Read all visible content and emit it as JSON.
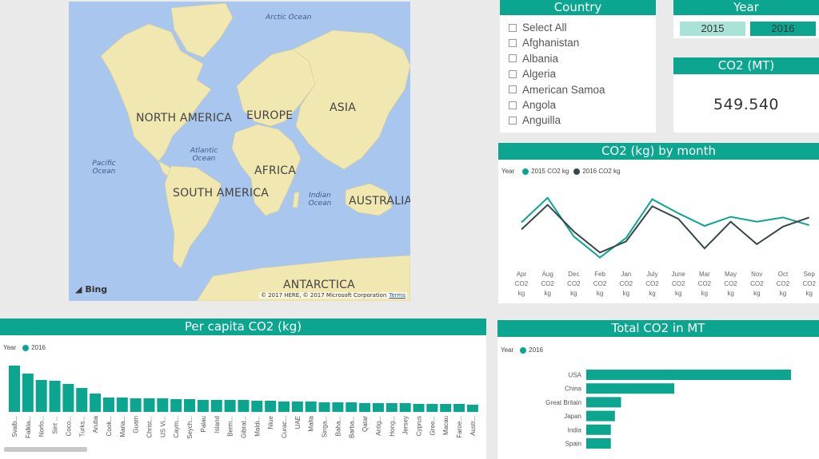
{
  "colors": {
    "teal": "#0ba590",
    "light_teal": "#a9e3d8",
    "dark": "#374649",
    "land": "#f1e7b1",
    "water": "#a9c6ee"
  },
  "map": {
    "continents": [
      "NORTH AMERICA",
      "SOUTH AMERICA",
      "EUROPE",
      "ASIA",
      "AFRICA",
      "AUSTRALIA",
      "ANTARCTICA"
    ],
    "oceans": [
      "Arctic Ocean",
      "Pacific Ocean",
      "Atlantic Ocean",
      "Indian Ocean"
    ],
    "logo": "Bing",
    "copyright": "© 2017 HERE, © 2017 Microsoft Corporation",
    "terms": "Terms"
  },
  "country_slicer": {
    "title": "Country",
    "items": [
      "Select All",
      "Afghanistan",
      "Albania",
      "Algeria",
      "American Samoa",
      "Angola",
      "Anguilla"
    ]
  },
  "year_slicer": {
    "title": "Year",
    "options": [
      "2015",
      "2016"
    ],
    "selected": "2016"
  },
  "card": {
    "title": "CO2 (MT)",
    "value": "549.540"
  },
  "line_chart_title": "CO2 (kg) by month",
  "per_capita_title": "Per capita CO2 (kg)",
  "total_title": "Total CO2 in MT",
  "chart_data": [
    {
      "type": "line",
      "title": "CO2 (kg) by month",
      "legend_title": "Year",
      "x": [
        "Apr CO2 kg",
        "Aug CO2 kg",
        "Dec CO2 kg",
        "Feb CO2 kg",
        "Jan CO2 kg",
        "July CO2 kg",
        "June CO2 kg",
        "Mar CO2 kg",
        "May CO2 kg",
        "Nov CO2 kg",
        "Oct CO2 kg",
        "Sep CO2 kg"
      ],
      "series": [
        {
          "name": "2015 CO2 kg",
          "color": "#0ba590",
          "values": [
            55,
            90,
            35,
            5,
            33,
            88,
            68,
            50,
            63,
            56,
            62,
            51
          ]
        },
        {
          "name": "2016 CO2 kg",
          "color": "#374649",
          "values": [
            45,
            80,
            42,
            12,
            28,
            78,
            60,
            18,
            56,
            24,
            49,
            62
          ]
        }
      ],
      "ylim": [
        0,
        100
      ]
    },
    {
      "type": "bar",
      "title": "Per capita CO2 (kg)",
      "legend_title": "Year",
      "series": [
        {
          "name": "2016",
          "color": "#0ba590"
        }
      ],
      "categories": [
        "Svalb...",
        "Falkla...",
        "Norfo...",
        "Sint ...",
        "Coco...",
        "Turks...",
        "Aruba",
        "Cook...",
        "Maria...",
        "Guam",
        "Christ...",
        "US Vi...",
        "Caym...",
        "Seych...",
        "Palau",
        "Island",
        "Berm...",
        "Gibral...",
        "Maldi...",
        "Niue",
        "Curac...",
        "UAE",
        "Malta",
        "Singa...",
        "Baha...",
        "Barba...",
        "Qatar",
        "Antig...",
        "Hong...",
        "Jersey",
        "Cyprus",
        "Gree...",
        "Macau",
        "Faroe...",
        "Austr..."
      ],
      "values": [
        58,
        48,
        40,
        39,
        35,
        30,
        23,
        18,
        18,
        17,
        17,
        17,
        16,
        16,
        15,
        15,
        15,
        15,
        14,
        14,
        13,
        13,
        13,
        12,
        12,
        12,
        11,
        11,
        11,
        11,
        10,
        10,
        10,
        10,
        9
      ],
      "ylim": [
        0,
        60
      ]
    },
    {
      "type": "bar",
      "orientation": "horizontal",
      "title": "Total CO2 in MT",
      "legend_title": "Year",
      "series": [
        {
          "name": "2016",
          "color": "#0ba590"
        }
      ],
      "categories": [
        "USA",
        "China",
        "Great Britain",
        "Japan",
        "India",
        "Spain"
      ],
      "values": [
        100,
        43,
        17,
        14,
        12,
        12
      ],
      "xlim": [
        0,
        100
      ]
    }
  ]
}
